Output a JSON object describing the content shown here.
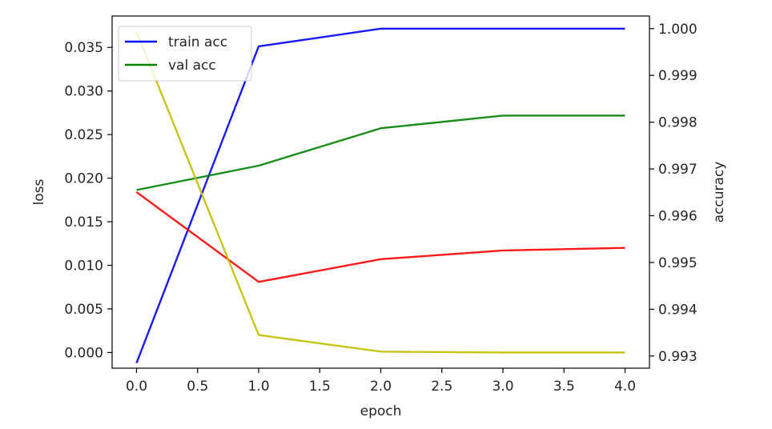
{
  "chart_data": {
    "type": "line",
    "title": "",
    "xlabel": "epoch",
    "ylabel_left": "loss",
    "ylabel_right": "accuracy",
    "xlim": [
      -0.2,
      4.2
    ],
    "ylim_left": [
      -0.0018,
      0.0386
    ],
    "ylim_right": [
      0.99274,
      1.00027
    ],
    "x_ticks": [
      "0.0",
      "0.5",
      "1.0",
      "1.5",
      "2.0",
      "2.5",
      "3.0",
      "3.5",
      "4.0"
    ],
    "y_left_ticks": [
      "0.000",
      "0.005",
      "0.010",
      "0.015",
      "0.020",
      "0.025",
      "0.030",
      "0.035"
    ],
    "y_right_ticks": [
      "0.993",
      "0.994",
      "0.995",
      "0.996",
      "0.997",
      "0.998",
      "0.999",
      "1.000"
    ],
    "grid": false,
    "legend_position": "upper-left",
    "series": [
      {
        "name": "train acc",
        "axis": "right",
        "color": "#0000ff",
        "x": [
          0,
          1,
          2,
          3,
          4
        ],
        "values": [
          0.99285,
          0.99962,
          1.0,
          1.0,
          1.0
        ],
        "in_legend": true
      },
      {
        "name": "val acc",
        "axis": "right",
        "color": "#008000",
        "x": [
          0,
          1,
          2,
          3,
          4
        ],
        "values": [
          0.99655,
          0.99707,
          0.99787,
          0.99814,
          0.99814
        ],
        "in_legend": true
      },
      {
        "name": "",
        "axis": "left",
        "color": "#ff0000",
        "x": [
          0,
          1,
          2,
          3,
          4
        ],
        "values": [
          0.0184,
          0.0081,
          0.0107,
          0.0117,
          0.012
        ],
        "in_legend": false
      },
      {
        "name": "",
        "axis": "left",
        "color": "#bfbf00",
        "x": [
          0,
          1,
          2,
          3,
          4
        ],
        "values": [
          0.0368,
          0.002,
          0.0001,
          0.0,
          0.0
        ],
        "in_legend": false
      }
    ]
  }
}
